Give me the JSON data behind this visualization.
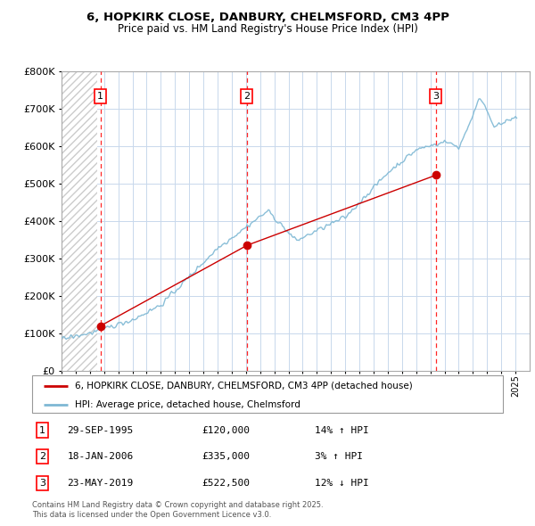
{
  "title_line1": "6, HOPKIRK CLOSE, DANBURY, CHELMSFORD, CM3 4PP",
  "title_line2": "Price paid vs. HM Land Registry's House Price Index (HPI)",
  "hpi_color": "#7eb8d4",
  "price_color": "#cc0000",
  "grid_color": "#c8d8ec",
  "background_color": "#ffffff",
  "transactions": [
    {
      "num": 1,
      "date_str": "29-SEP-1995",
      "price": 120000,
      "year": 1995.75,
      "pct": "14%",
      "dir": "↑"
    },
    {
      "num": 2,
      "date_str": "18-JAN-2006",
      "price": 335000,
      "year": 2006.05,
      "pct": "3%",
      "dir": "↑"
    },
    {
      "num": 3,
      "date_str": "23-MAY-2019",
      "price": 522500,
      "year": 2019.38,
      "pct": "12%",
      "dir": "↓"
    }
  ],
  "legend_line1": "6, HOPKIRK CLOSE, DANBURY, CHELMSFORD, CM3 4PP (detached house)",
  "legend_line2": "HPI: Average price, detached house, Chelmsford",
  "footnote": "Contains HM Land Registry data © Crown copyright and database right 2025.\nThis data is licensed under the Open Government Licence v3.0.",
  "ylim": [
    0,
    800000
  ],
  "xlim_start": 1993,
  "xlim_end": 2026
}
